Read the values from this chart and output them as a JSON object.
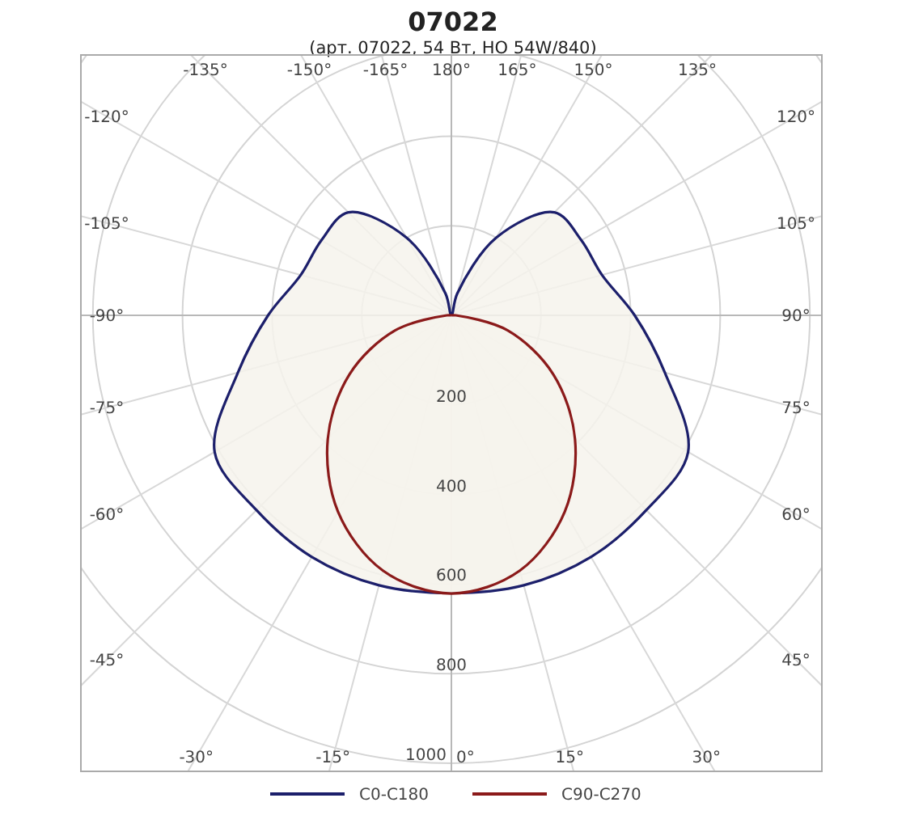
{
  "chart_data": {
    "type": "radar",
    "title": "07022",
    "subtitle": "(арт. 07022, 54 Вт, HO 54W/840)",
    "categories": [
      "180°",
      "165°",
      "150°",
      "135°",
      "120°",
      "105°",
      "90°",
      "75°",
      "60°",
      "45°",
      "30°",
      "15°",
      "0°",
      "-15°",
      "-30°",
      "-45°",
      "-60°",
      "-75°",
      "-90°",
      "-105°",
      "-120°",
      "-135°",
      "-150°",
      "-165°"
    ],
    "series": [
      {
        "name": "C0-C180",
        "color": "#1c1f6b",
        "values": [
          0,
          50,
          200,
          325,
          335,
          348,
          409,
          493,
          610,
          615,
          623,
          624,
          620,
          624,
          623,
          615,
          610,
          493,
          409,
          348,
          335,
          325,
          200,
          50
        ]
      },
      {
        "name": "C90-C270",
        "color": "#8b1a1a",
        "values": [
          0,
          0,
          0,
          0,
          0,
          0,
          10,
          130,
          262,
          390,
          506,
          590,
          621,
          590,
          506,
          390,
          262,
          130,
          10,
          0,
          0,
          0,
          0,
          0
        ]
      }
    ],
    "ylim": [
      0,
      1000
    ],
    "yticks": [
      200,
      400,
      600,
      800,
      1000
    ],
    "grid": true,
    "legend": "bottom"
  }
}
